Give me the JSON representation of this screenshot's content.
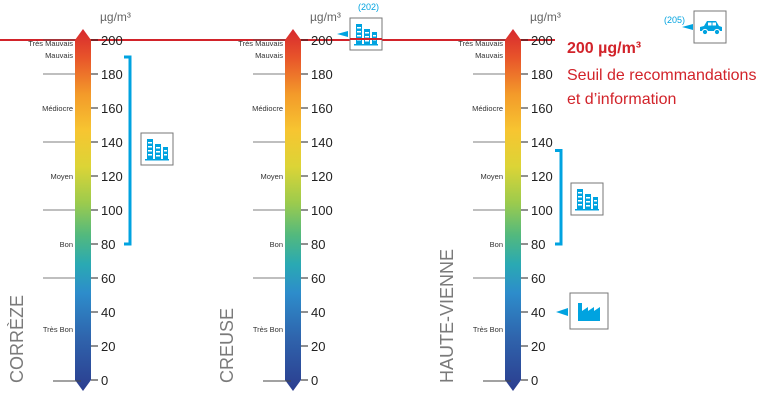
{
  "unit": "µg/m³",
  "chart_data": {
    "type": "gradient-scale",
    "pollutant_unit": "µg/m³",
    "ylim": [
      0,
      200
    ],
    "tick_values": [
      0,
      20,
      40,
      60,
      80,
      100,
      120,
      140,
      160,
      180,
      200
    ],
    "category_bands": [
      {
        "label": "Très Mauvais",
        "from": 200,
        "to": 200
      },
      {
        "label": "Mauvais",
        "from": 180,
        "to": 200
      },
      {
        "label": "Médiocre",
        "from": 140,
        "to": 180
      },
      {
        "label": "Moyen",
        "from": 100,
        "to": 140
      },
      {
        "label": "Bon",
        "from": 60,
        "to": 100
      },
      {
        "label": "Très Bon",
        "from": 0,
        "to": 60
      }
    ],
    "threshold": {
      "value": 200,
      "value_label": "200 µg/m³",
      "label_line1": "Seuil de recommandations",
      "label_line2": "et d’information"
    },
    "departments": [
      {
        "name": "CORRÈZE",
        "ranges": [
          {
            "icon": "city-buildings-icon",
            "from": 80,
            "to": 190
          }
        ],
        "peaks": []
      },
      {
        "name": "CREUSE",
        "ranges": [],
        "peaks": [
          {
            "icon": "city-buildings-icon",
            "value": 202,
            "label": "(202)"
          }
        ]
      },
      {
        "name": "HAUTE-VIENNE",
        "ranges": [
          {
            "icon": "city-buildings-icon",
            "from": 80,
            "to": 135
          }
        ],
        "peaks": [
          {
            "icon": "car-icon",
            "value": 205,
            "label": "(205)"
          }
        ],
        "points": [
          {
            "icon": "factory-icon",
            "value": 40
          }
        ]
      }
    ]
  },
  "colors": {
    "threshold_red": "#d2232a",
    "bracket_blue": "#00a3e0",
    "icon_blue": "#00a3e0",
    "gradient_top": "#d7282f",
    "gradient_bottom": "#2b3d8f"
  }
}
